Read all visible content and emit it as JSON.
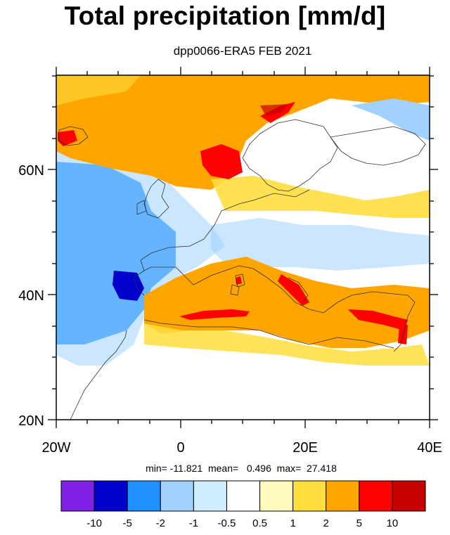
{
  "title": "Total precipitation [mm/d]",
  "subtitle": "dpp0066-ERA5 FEB 2021",
  "chart_data": {
    "type": "heatmap",
    "title": "Total precipitation [mm/d]",
    "subtitle": "dpp0066-ERA5 FEB 2021",
    "xlim": [
      -20,
      40
    ],
    "ylim": [
      20,
      75
    ],
    "x_ticks": [
      "20W",
      "0",
      "20E",
      "40E"
    ],
    "y_ticks": [
      "20N",
      "40N",
      "60N"
    ],
    "stats": {
      "min": "-11.821",
      "mean": "0.496",
      "max": "27.418"
    },
    "colorbar": {
      "levels": [
        "-10",
        "-5",
        "-2",
        "-1",
        "-0.5",
        "0.5",
        "1",
        "2",
        "5",
        "10"
      ],
      "colors": [
        "#7f22e6",
        "#0000cd",
        "#1e90ff",
        "#a0d1ff",
        "#cfefff",
        "#ffffff",
        "#fffbbe",
        "#ffde3e",
        "#ffa500",
        "#ff0000",
        "#c70000"
      ]
    }
  },
  "stats_text": "min= -11.821  mean=   0.496  max=  27.418"
}
